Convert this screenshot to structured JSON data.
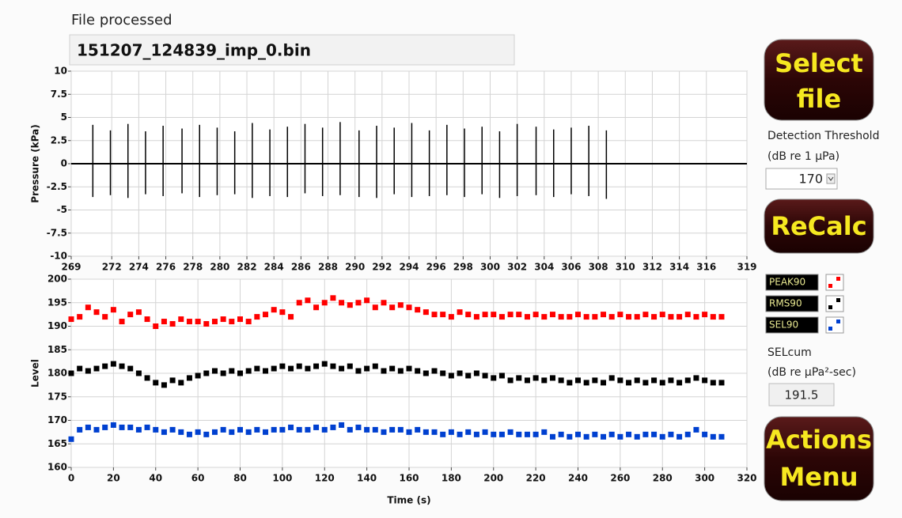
{
  "file_label": "File processed",
  "file_name": "151207_124839_imp_0.bin",
  "buttons": [
    {
      "lines": [
        "Select",
        "file"
      ]
    },
    {
      "lines": [
        "ReCalc"
      ]
    },
    {
      "lines": [
        "Actions",
        "Menu"
      ]
    }
  ],
  "detection": {
    "lines": [
      "Detection Threshold",
      "(dB re 1 μPa)"
    ],
    "value": 170
  },
  "selcum": {
    "lines": [
      "SELcum",
      "(dB re μPa²-sec)"
    ],
    "value": 191.5
  },
  "chart_data": [
    {
      "type": "line",
      "y_label": "Pressure (kPa)",
      "xlim": [
        269,
        319
      ],
      "xticks": [
        269,
        272,
        274,
        276,
        278,
        280,
        282,
        284,
        286,
        288,
        290,
        292,
        294,
        296,
        298,
        300,
        302,
        304,
        306,
        308,
        310,
        312,
        314,
        316,
        319
      ],
      "ylim": [
        -10,
        10
      ],
      "yticks": [
        10,
        7.5,
        5,
        2.5,
        0,
        -2.5,
        -5,
        -7.5,
        -10
      ],
      "grid": true,
      "color": "#000000",
      "trace": {
        "x": [
          269,
          319
        ],
        "values": [
          0,
          0
        ]
      },
      "pulses": {
        "x": [
          270.6,
          271.9,
          273.2,
          274.5,
          275.8,
          277.2,
          278.5,
          279.8,
          281.1,
          282.4,
          283.7,
          285.0,
          286.3,
          287.6,
          288.9,
          290.3,
          291.6,
          292.9,
          294.2,
          295.5,
          296.8,
          298.1,
          299.4,
          300.7,
          302.0,
          303.4,
          304.7,
          306.0,
          307.3,
          308.6
        ],
        "peak": [
          4.2,
          3.6,
          4.3,
          3.5,
          4.1,
          3.8,
          4.2,
          3.9,
          3.5,
          4.4,
          3.7,
          4.0,
          4.3,
          3.9,
          4.5,
          3.6,
          4.1,
          3.9,
          4.4,
          3.6,
          4.2,
          3.8,
          4.0,
          3.5,
          4.3,
          4.0,
          3.7,
          3.9,
          4.1,
          3.6
        ],
        "trough": [
          -3.6,
          -3.4,
          -3.7,
          -3.3,
          -3.5,
          -3.2,
          -3.6,
          -3.4,
          -3.3,
          -3.7,
          -3.5,
          -3.6,
          -3.2,
          -3.5,
          -3.4,
          -3.6,
          -3.7,
          -3.3,
          -3.6,
          -3.5,
          -3.4,
          -3.6,
          -3.3,
          -3.7,
          -3.5,
          -3.4,
          -3.6,
          -3.3,
          -3.5,
          -3.8
        ]
      }
    },
    {
      "type": "scatter",
      "x_label": "Time (s)",
      "y_label": "Level",
      "xlim": [
        0,
        320
      ],
      "xticks": [
        0,
        20,
        40,
        60,
        80,
        100,
        120,
        140,
        160,
        180,
        200,
        220,
        240,
        260,
        280,
        300,
        320
      ],
      "ylim": [
        160,
        200
      ],
      "yticks": [
        200,
        195,
        190,
        185,
        180,
        175,
        170,
        165,
        160
      ],
      "grid": true,
      "x": [
        0,
        4,
        8,
        12,
        16,
        20,
        24,
        28,
        32,
        36,
        40,
        44,
        48,
        52,
        56,
        60,
        64,
        68,
        72,
        76,
        80,
        84,
        88,
        92,
        96,
        100,
        104,
        108,
        112,
        116,
        120,
        124,
        128,
        132,
        136,
        140,
        144,
        148,
        152,
        156,
        160,
        164,
        168,
        172,
        176,
        180,
        184,
        188,
        192,
        196,
        200,
        204,
        208,
        212,
        216,
        220,
        224,
        228,
        232,
        236,
        240,
        244,
        248,
        252,
        256,
        260,
        264,
        268,
        272,
        276,
        280,
        284,
        288,
        292,
        296,
        300,
        304,
        308
      ],
      "series": [
        {
          "name": "PEAK90",
          "color": "#ff0000",
          "values": [
            191.5,
            192,
            194,
            193,
            192,
            193.5,
            191,
            192.5,
            193,
            191.5,
            190,
            191,
            190.5,
            191.5,
            191,
            191,
            190.5,
            191,
            191.5,
            191,
            191.5,
            191,
            192,
            192.5,
            193.5,
            193,
            192,
            195,
            195.5,
            194,
            195,
            196,
            195,
            194.5,
            195,
            195.5,
            194,
            195,
            194,
            194.5,
            194,
            193.5,
            193,
            192.5,
            192.5,
            192,
            193,
            192.5,
            192,
            192.5,
            192.5,
            192,
            192.5,
            192.5,
            192,
            192.5,
            192,
            192.5,
            192,
            192,
            192.5,
            192,
            192,
            192.5,
            192,
            192.5,
            192,
            192,
            192.5,
            192,
            192.5,
            192,
            192,
            192.5,
            192,
            192.5,
            192,
            192
          ]
        },
        {
          "name": "RMS90",
          "color": "#000000",
          "values": [
            180,
            181,
            180.5,
            181,
            181.5,
            182,
            181.5,
            181,
            180,
            179,
            178,
            177.5,
            178.5,
            178,
            179,
            179.5,
            180,
            180.5,
            180,
            180.5,
            180,
            180.5,
            181,
            180.5,
            181,
            181.5,
            181,
            181.5,
            181,
            181.5,
            182,
            181.5,
            181,
            181.5,
            180.5,
            181,
            181.5,
            180.5,
            181,
            180.5,
            181,
            180.5,
            180,
            180.5,
            180,
            179.5,
            180,
            179.5,
            180,
            179.5,
            179,
            179.5,
            178.5,
            179,
            178.5,
            179,
            178.5,
            179,
            178.5,
            178,
            178.5,
            178,
            178.5,
            178,
            179,
            178.5,
            178,
            178.5,
            178,
            178.5,
            178,
            178.5,
            178,
            178.5,
            179,
            178.5,
            178,
            178
          ]
        },
        {
          "name": "SEL90",
          "color": "#0040d0",
          "values": [
            166,
            168,
            168.5,
            168,
            168.5,
            169,
            168.5,
            168.5,
            168,
            168.5,
            168,
            167.5,
            168,
            167.5,
            167,
            167.5,
            167,
            167.5,
            168,
            167.5,
            168,
            167.5,
            168,
            167.5,
            168,
            168,
            168.5,
            168,
            168,
            168.5,
            168,
            168.5,
            169,
            168,
            168.5,
            168,
            168,
            167.5,
            168,
            168,
            167.5,
            168,
            167.5,
            167.5,
            167,
            167.5,
            167,
            167.5,
            167,
            167.5,
            167,
            167,
            167.5,
            167,
            167,
            167,
            167.5,
            166.5,
            167,
            166.5,
            167,
            166.5,
            167,
            166.5,
            167,
            166.5,
            167,
            166.5,
            167,
            167,
            166.5,
            167,
            166.5,
            167,
            168,
            167,
            166.5,
            166.5
          ]
        }
      ]
    }
  ]
}
